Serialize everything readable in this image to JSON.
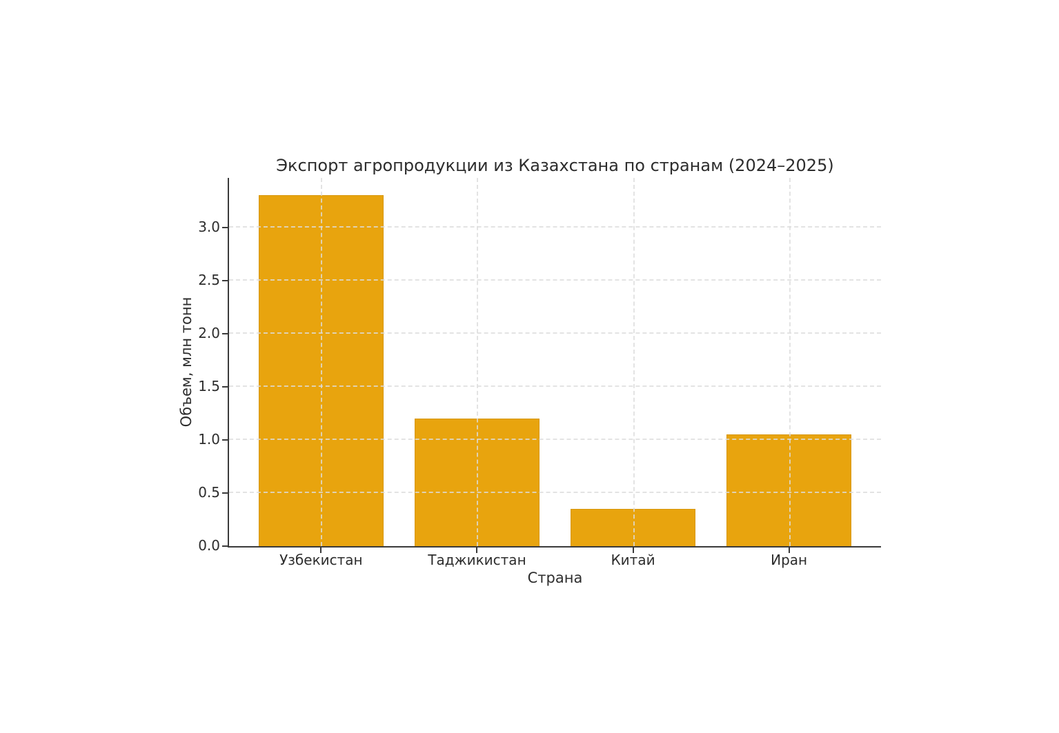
{
  "chart_data": {
    "type": "bar",
    "title": "Экспорт агропродукции из Казахстана по странам (2024–2025)",
    "xlabel": "Страна",
    "ylabel": "Объем, млн тонн",
    "categories": [
      "Узбекистан",
      "Таджикистан",
      "Китай",
      "Иран"
    ],
    "values": [
      3.3,
      1.2,
      0.35,
      1.05
    ],
    "yticks": [
      {
        "value": 0.0,
        "label": "0.0"
      },
      {
        "value": 0.5,
        "label": "0.5"
      },
      {
        "value": 1.0,
        "label": "1.0"
      },
      {
        "value": 1.5,
        "label": "1.5"
      },
      {
        "value": 2.0,
        "label": "2.0"
      },
      {
        "value": 2.5,
        "label": "2.5"
      },
      {
        "value": 3.0,
        "label": "3.0"
      }
    ],
    "ylim": [
      0,
      3.465
    ],
    "xlim": [
      -0.59,
      3.59
    ],
    "bar_width": 0.8,
    "grid": true,
    "legend": false,
    "colors": {
      "bar": "#E8A40E",
      "grid": "rgba(220,220,220,0.8)",
      "spine": "#3a3a3a",
      "text": "#2d2d2d",
      "background": "#ffffff"
    }
  }
}
